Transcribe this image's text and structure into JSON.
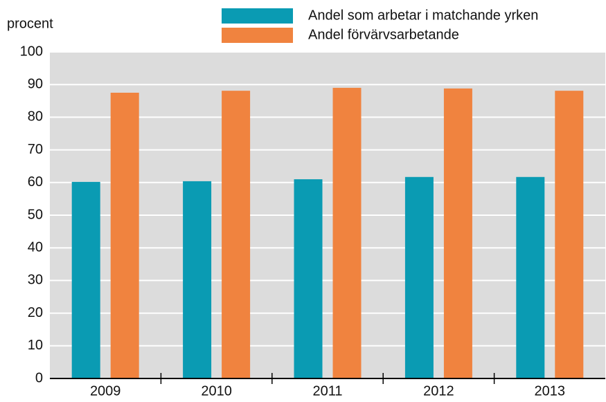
{
  "chart_data": {
    "type": "bar",
    "ylabel": "procent",
    "categories": [
      "2009",
      "2010",
      "2011",
      "2012",
      "2013"
    ],
    "series": [
      {
        "name": "Andel som arbetar i matchande yrken",
        "color": "#0a9bb3",
        "values": [
          60.2,
          60.4,
          61.0,
          61.7,
          61.7
        ]
      },
      {
        "name": "Andel förvärvsarbetande",
        "color": "#f0833f",
        "values": [
          87.5,
          88.1,
          89.0,
          88.8,
          88.1
        ]
      }
    ],
    "ylim": [
      0,
      100
    ],
    "yticks": [
      0,
      10,
      20,
      30,
      40,
      50,
      60,
      70,
      80,
      90,
      100
    ],
    "grid": true,
    "legend": "top-right"
  }
}
